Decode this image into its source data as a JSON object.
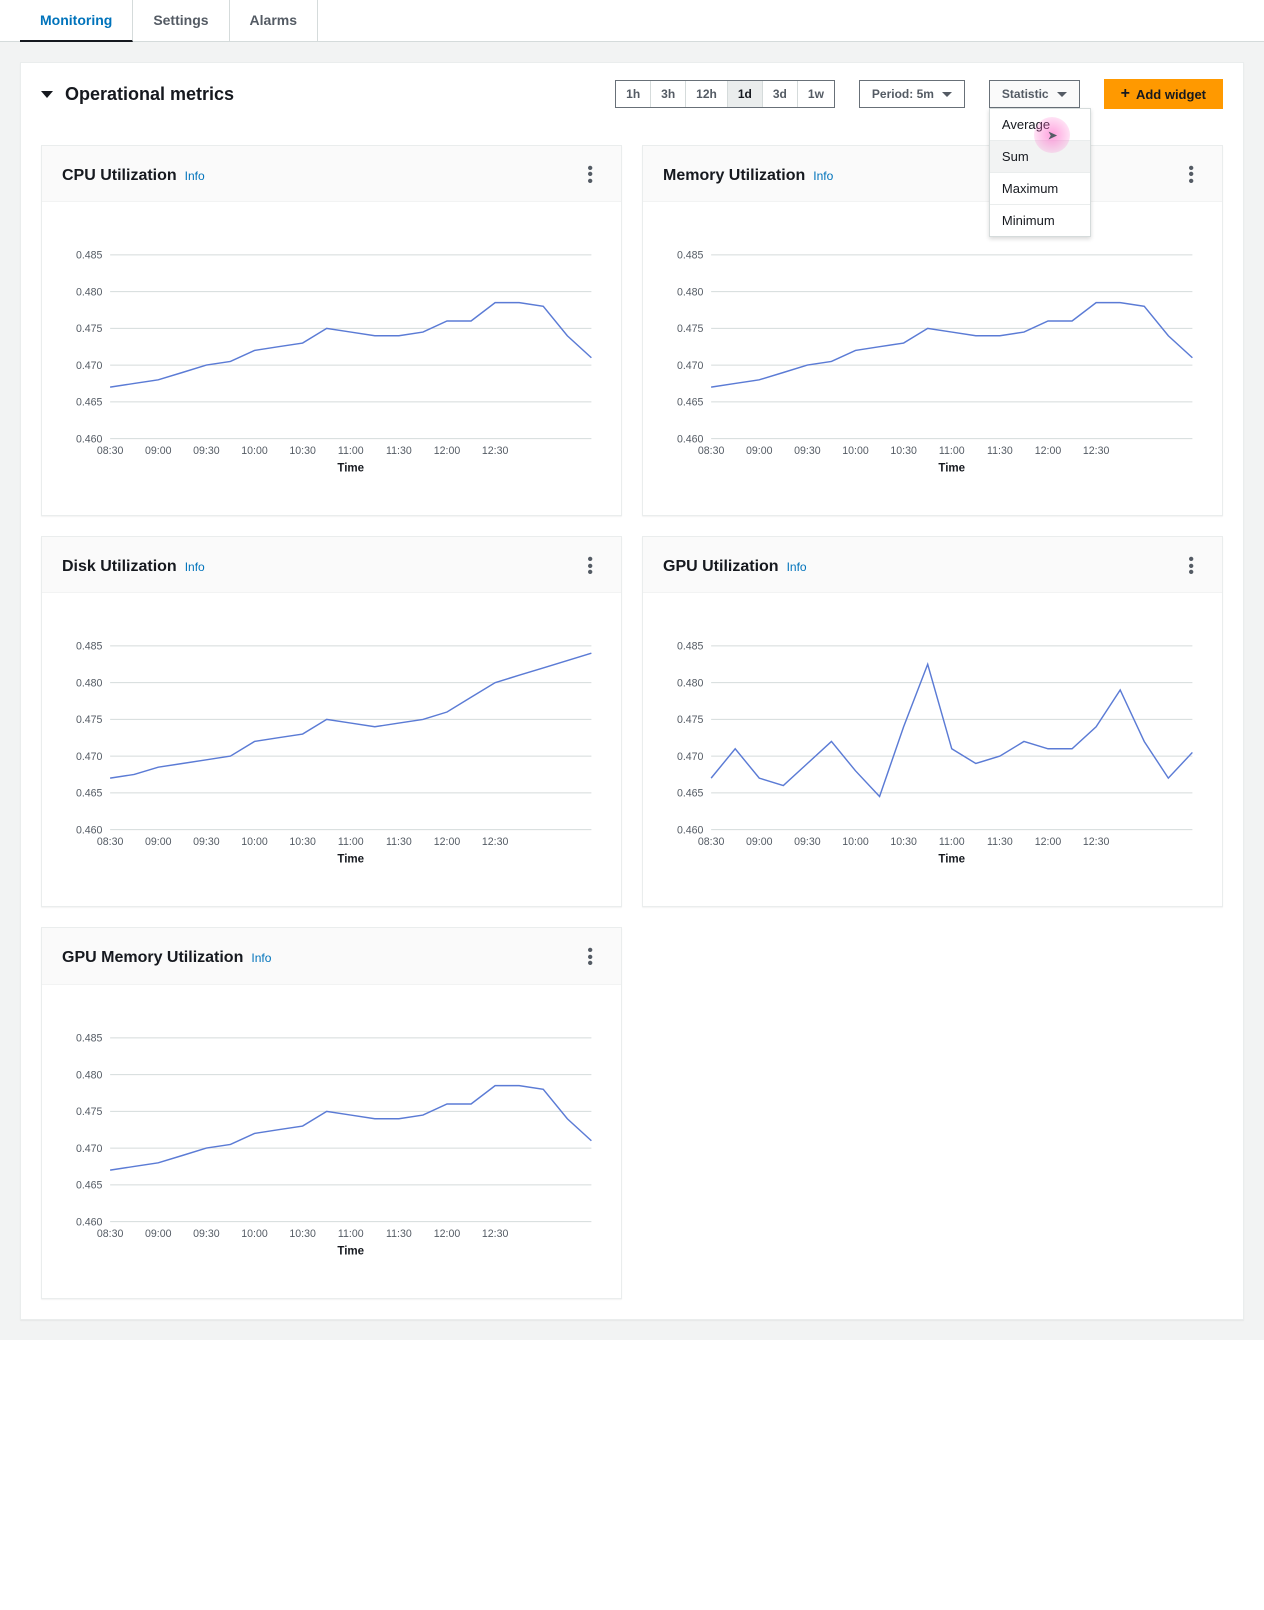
{
  "tabs": [
    {
      "label": "Monitoring",
      "active": true
    },
    {
      "label": "Settings",
      "active": false
    },
    {
      "label": "Alarms",
      "active": false
    }
  ],
  "panel": {
    "title": "Operational metrics",
    "time_ranges": [
      {
        "label": "1h",
        "active": false
      },
      {
        "label": "3h",
        "active": false
      },
      {
        "label": "12h",
        "active": false
      },
      {
        "label": "1d",
        "active": true
      },
      {
        "label": "3d",
        "active": false
      },
      {
        "label": "1w",
        "active": false
      }
    ],
    "period_label": "Period: 5m",
    "statistic_label": "Statistic",
    "statistic_options": [
      {
        "label": "Average",
        "highlight": false
      },
      {
        "label": "Sum",
        "highlight": true
      },
      {
        "label": "Maximum",
        "highlight": false
      },
      {
        "label": "Minimum",
        "highlight": false
      }
    ],
    "add_widget_label": "Add widget"
  },
  "chart_common": {
    "x_label": "Time",
    "x_ticks": [
      "08:30",
      "09:00",
      "09:30",
      "10:00",
      "10:30",
      "11:00",
      "11:30",
      "12:00",
      "12:30"
    ],
    "y_ticks": [
      "0.460",
      "0.465",
      "0.470",
      "0.475",
      "0.480",
      "0.485"
    ],
    "y_min": 0.46,
    "y_max": 0.4875,
    "line_color": "#5b7bd5",
    "grid_color": "#d5dbdb",
    "tick_font_size": 11,
    "info_label": "Info"
  },
  "series_a": {
    "x": [
      0,
      1,
      2,
      3,
      4,
      5,
      6,
      7,
      8,
      9,
      10,
      11,
      12,
      13,
      14,
      15,
      16,
      17,
      18,
      19,
      20
    ],
    "y": [
      0.467,
      0.4675,
      0.468,
      0.469,
      0.47,
      0.4705,
      0.472,
      0.4725,
      0.473,
      0.475,
      0.4745,
      0.474,
      0.474,
      0.4745,
      0.476,
      0.476,
      0.4785,
      0.4785,
      0.478,
      0.474,
      0.471
    ]
  },
  "series_b": {
    "x": [
      0,
      1,
      2,
      3,
      4,
      5,
      6,
      7,
      8,
      9,
      10,
      11,
      12,
      13,
      14,
      15,
      16,
      17,
      18,
      19,
      20
    ],
    "y": [
      0.467,
      0.4675,
      0.4685,
      0.469,
      0.4695,
      0.47,
      0.472,
      0.4725,
      0.473,
      0.475,
      0.4745,
      0.474,
      0.4745,
      0.475,
      0.476,
      0.478,
      0.48,
      0.481,
      0.482,
      0.483,
      0.484
    ]
  },
  "series_c": {
    "x": [
      0,
      1,
      2,
      3,
      4,
      5,
      6,
      7,
      8,
      9,
      10,
      11,
      12,
      13,
      14,
      15,
      16,
      17,
      18,
      19,
      20
    ],
    "y": [
      0.467,
      0.471,
      0.467,
      0.466,
      0.469,
      0.472,
      0.468,
      0.4645,
      0.474,
      0.4825,
      0.471,
      0.469,
      0.47,
      0.472,
      0.471,
      0.471,
      0.474,
      0.479,
      0.472,
      0.467,
      0.4705
    ]
  },
  "charts": [
    {
      "title": "CPU Utilization",
      "series": "series_a"
    },
    {
      "title": "Memory Utilization",
      "series": "series_a"
    },
    {
      "title": "Disk Utilization",
      "series": "series_b"
    },
    {
      "title": "GPU Utilization",
      "series": "series_c"
    },
    {
      "title": "GPU Memory Utilization",
      "series": "series_a"
    }
  ],
  "colors": {
    "primary": "#0073bb",
    "accent": "#ff9900",
    "text": "#16191f",
    "muted": "#545b64",
    "border": "#d5dbdb",
    "bg_page": "#f2f3f3",
    "bg_card": "#ffffff"
  }
}
